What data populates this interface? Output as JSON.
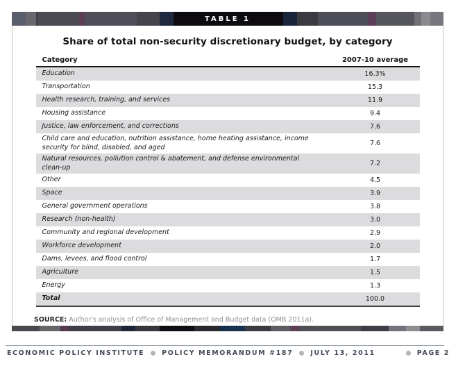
{
  "banner": {
    "label": "TABLE 1"
  },
  "table": {
    "title": "Share of total non-security discretionary budget, by category",
    "columns": {
      "category": "Category",
      "value": "2007-10 average"
    },
    "rows": [
      {
        "category": "Education",
        "value": "16.3%"
      },
      {
        "category": "Transportation",
        "value": "15.3"
      },
      {
        "category": "Health research, training, and services",
        "value": "11.9"
      },
      {
        "category": "Housing assistance",
        "value": "9.4"
      },
      {
        "category": "Justice, law enforcement, and corrections",
        "value": "7.6"
      },
      {
        "category": "Child care and education, nutrition assistance, home heating assistance, income security for blind, disabled, and aged",
        "value": "7.6"
      },
      {
        "category": "Natural resources, pollution control & abatement, and defense environmental clean-up",
        "value": "7.2"
      },
      {
        "category": "Other",
        "value": "4.5"
      },
      {
        "category": "Space",
        "value": "3.9"
      },
      {
        "category": "General government operations",
        "value": "3.8"
      },
      {
        "category": "Research (non-health)",
        "value": "3.0"
      },
      {
        "category": "Community and regional development",
        "value": "2.9"
      },
      {
        "category": "Workforce development",
        "value": "2.0"
      },
      {
        "category": "Dams, levees, and flood control",
        "value": "1.7"
      },
      {
        "category": "Agriculture",
        "value": "1.5"
      },
      {
        "category": "Energy",
        "value": "1.3"
      },
      {
        "category": "Total",
        "value": "100.0",
        "total": true
      }
    ]
  },
  "source": {
    "label": "SOURCE:",
    "text": " Author's analysis of Office of Management and Budget data (OMB 2011a)."
  },
  "footer": {
    "items": [
      "ECONOMIC POLICY INSTITUTE",
      "POLICY MEMORANDUM #187",
      "JULY 13, 2011"
    ],
    "page": "PAGE 2"
  },
  "colors": {
    "banner_background": "#0d0b10",
    "banner_text": "#ffffff",
    "row_stripe": "#dcdbde",
    "header_rule": "#161616",
    "footer_text": "#454b57",
    "footer_dot": "#b5b5b5"
  },
  "chart_data": {
    "type": "table",
    "title": "Share of total non-security discretionary budget, by category",
    "columns": [
      "Category",
      "2007-10 average"
    ],
    "categories": [
      "Education",
      "Transportation",
      "Health research, training, and services",
      "Housing assistance",
      "Justice, law enforcement, and corrections",
      "Child care and education, nutrition assistance, home heating assistance, income security for blind, disabled, and aged",
      "Natural resources, pollution control & abatement, and defense environmental clean-up",
      "Other",
      "Space",
      "General government operations",
      "Research (non-health)",
      "Community and regional development",
      "Workforce development",
      "Dams, levees, and flood control",
      "Agriculture",
      "Energy",
      "Total"
    ],
    "values": [
      16.3,
      15.3,
      11.9,
      9.4,
      7.6,
      7.6,
      7.2,
      4.5,
      3.9,
      3.8,
      3.0,
      2.9,
      2.0,
      1.7,
      1.5,
      1.3,
      100.0
    ]
  }
}
